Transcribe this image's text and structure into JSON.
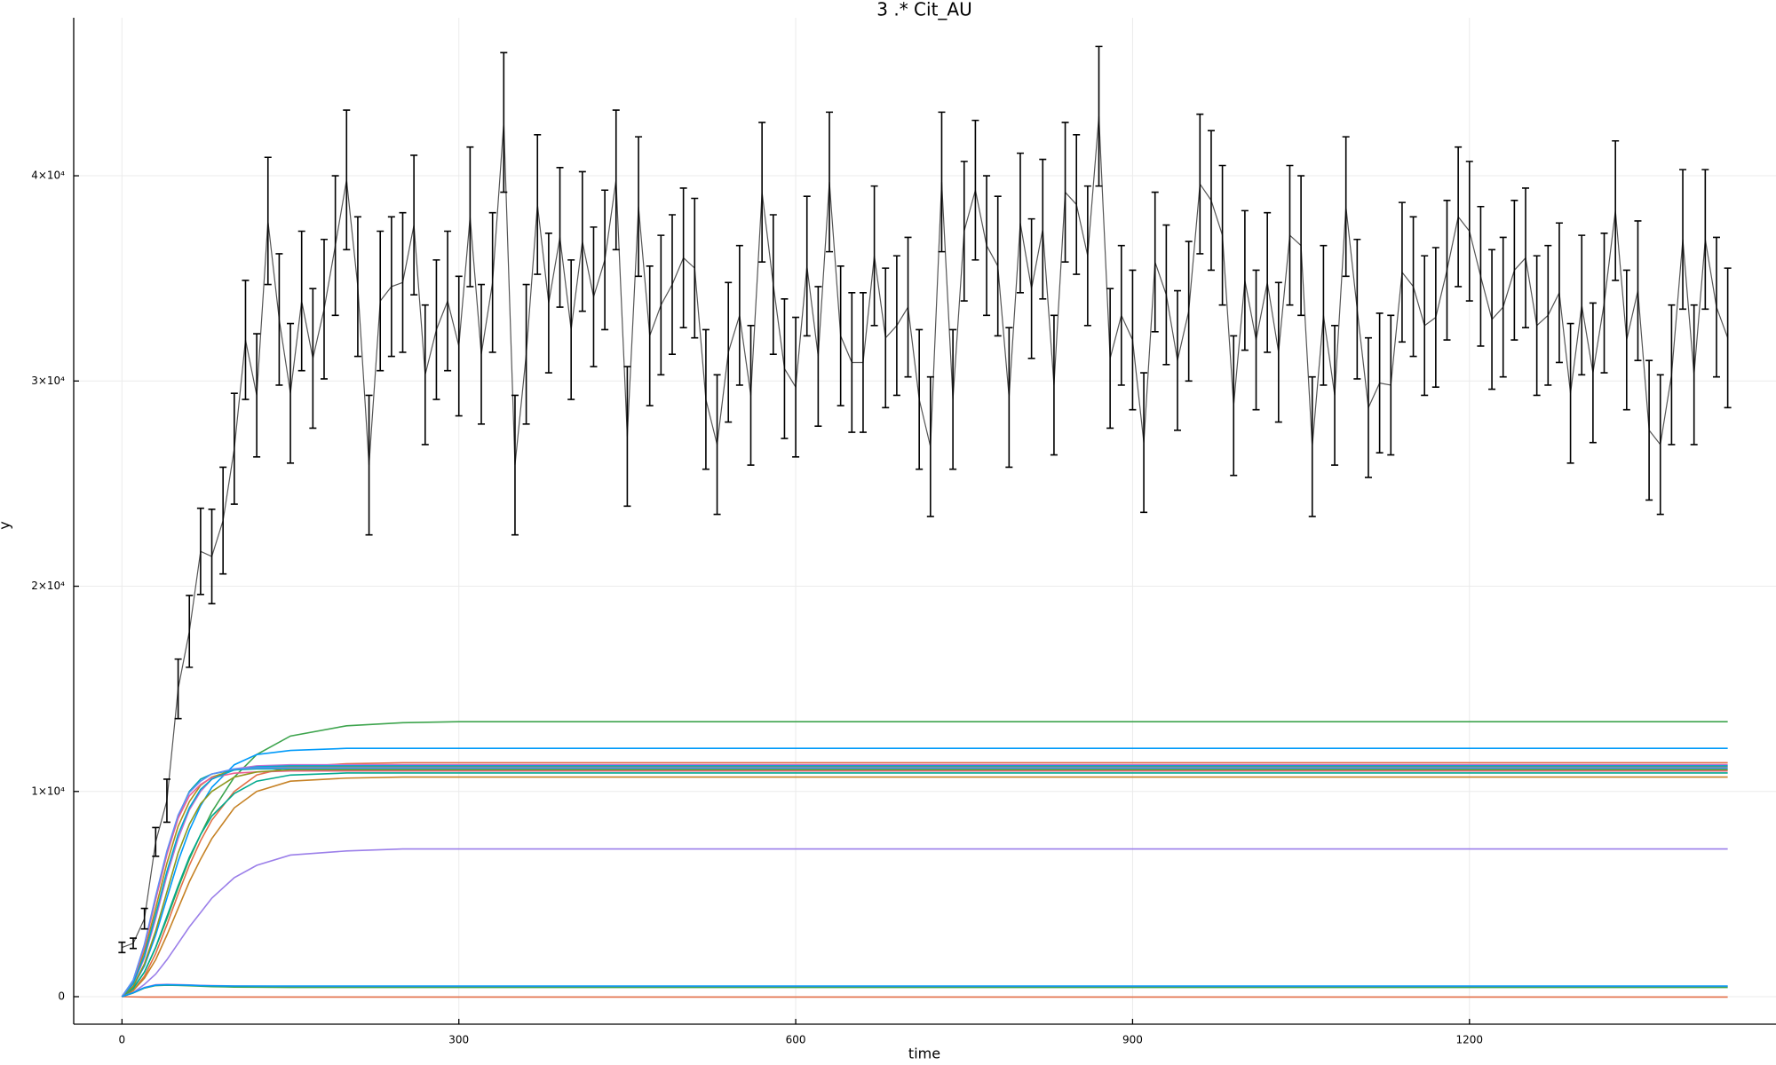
{
  "chart_data": {
    "type": "line",
    "title": "3 .* Cit_AU",
    "x_label": "time",
    "y_label": "y",
    "xlim": [
      -43,
      1473
    ],
    "ylim": [
      -1340,
      47700
    ],
    "xticks": [
      0,
      300,
      600,
      900,
      1200
    ],
    "yticks": [
      0,
      {
        "value": 10000,
        "label": "1×10⁴"
      },
      {
        "value": 20000,
        "label": "2×10⁴"
      },
      {
        "value": 30000,
        "label": "3×10⁴"
      },
      {
        "value": 40000,
        "label": "4×10⁴"
      }
    ],
    "grid": true,
    "x": [
      0,
      10,
      20,
      30,
      40,
      50,
      60,
      70,
      80,
      100,
      120,
      150,
      200,
      250,
      300,
      1430
    ],
    "series": [
      {
        "color": "#555555",
        "error_color": "#000000",
        "x": [
          0,
          10,
          20,
          30,
          40,
          50,
          60,
          70,
          80,
          90,
          100,
          110,
          120,
          130,
          140,
          150,
          160,
          170,
          180,
          190,
          200,
          210,
          220,
          230,
          240,
          250,
          260,
          270,
          280,
          290,
          300,
          310,
          320,
          330,
          340,
          350,
          360,
          370,
          380,
          390,
          400,
          410,
          420,
          430,
          440,
          450,
          460,
          470,
          480,
          490,
          500,
          510,
          520,
          530,
          540,
          550,
          560,
          570,
          580,
          590,
          600,
          610,
          620,
          630,
          640,
          650,
          660,
          670,
          680,
          690,
          700,
          710,
          720,
          730,
          740,
          750,
          760,
          770,
          780,
          790,
          800,
          810,
          820,
          830,
          840,
          850,
          860,
          870,
          880,
          890,
          900,
          910,
          920,
          930,
          940,
          950,
          960,
          970,
          980,
          990,
          1000,
          1010,
          1020,
          1030,
          1040,
          1050,
          1060,
          1070,
          1080,
          1090,
          1100,
          1110,
          1120,
          1130,
          1140,
          1150,
          1160,
          1170,
          1180,
          1190,
          1200,
          1210,
          1220,
          1230,
          1240,
          1250,
          1260,
          1270,
          1280,
          1290,
          1300,
          1310,
          1320,
          1330,
          1340,
          1350,
          1360,
          1370,
          1380,
          1390,
          1400,
          1410,
          1420,
          1430
        ],
        "values": [
          2400,
          2600,
          3800,
          7540,
          9550,
          15000,
          17800,
          21700,
          21450,
          23200,
          26700,
          32000,
          29300,
          37800,
          33000,
          29400,
          33900,
          31100,
          33500,
          36600,
          39800,
          34600,
          25900,
          33900,
          34600,
          34800,
          37600,
          30300,
          32500,
          33900,
          31700,
          38000,
          31300,
          34800,
          42600,
          25900,
          31300,
          38600,
          33800,
          37000,
          32500,
          36800,
          34100,
          35900,
          39800,
          27300,
          38500,
          32200,
          33700,
          34700,
          36000,
          35500,
          29100,
          26900,
          31400,
          33200,
          29300,
          39200,
          34700,
          30600,
          29700,
          35600,
          31200,
          39700,
          32200,
          30900,
          30900,
          36100,
          32100,
          32700,
          33600,
          29100,
          26800,
          39700,
          29100,
          37300,
          39300,
          36600,
          35600,
          29200,
          37700,
          34500,
          37400,
          29800,
          39200,
          38600,
          36100,
          42900,
          31100,
          33200,
          32000,
          27000,
          35800,
          34200,
          31000,
          33400,
          39600,
          38800,
          37100,
          28800,
          34900,
          32000,
          34800,
          31400,
          37100,
          36600,
          26800,
          33200,
          29300,
          38500,
          33500,
          28700,
          29900,
          29800,
          35300,
          34600,
          32700,
          33100,
          35400,
          38000,
          37300,
          35100,
          33000,
          33600,
          35400,
          36000,
          32700,
          33200,
          34300,
          29400,
          33700,
          30400,
          33800,
          38300,
          32000,
          34400,
          27600,
          26900,
          30300,
          36900,
          30300,
          36900,
          33600,
          32100
        ],
        "errors": [
          250,
          250,
          500,
          700,
          1050,
          1450,
          1750,
          2100,
          2300,
          2600,
          2700,
          2900,
          3000,
          3100,
          3200,
          3400,
          3400,
          3400,
          3400,
          3400,
          3400,
          3400,
          3400,
          3400,
          3400,
          3400,
          3400,
          3400,
          3400,
          3400,
          3400,
          3400,
          3400,
          3400,
          3400,
          3400,
          3400,
          3400,
          3400,
          3400,
          3400,
          3400,
          3400,
          3400,
          3400,
          3400,
          3400,
          3400,
          3400,
          3400,
          3400,
          3400,
          3400,
          3400,
          3400,
          3400,
          3400,
          3400,
          3400,
          3400,
          3400,
          3400,
          3400,
          3400,
          3400,
          3400,
          3400,
          3400,
          3400,
          3400,
          3400,
          3400,
          3400,
          3400,
          3400,
          3400,
          3400,
          3400,
          3400,
          3400,
          3400,
          3400,
          3400,
          3400,
          3400,
          3400,
          3400,
          3400,
          3400,
          3400,
          3400,
          3400,
          3400,
          3400,
          3400,
          3400,
          3400,
          3400,
          3400,
          3400,
          3400,
          3400,
          3400,
          3400,
          3400,
          3400,
          3400,
          3400,
          3400,
          3400,
          3400,
          3400,
          3400,
          3400,
          3400,
          3400,
          3400,
          3400,
          3400,
          3400,
          3400,
          3400,
          3400,
          3400,
          3400,
          3400,
          3400,
          3400,
          3400,
          3400,
          3400,
          3400,
          3400,
          3400,
          3400,
          3400,
          3400,
          3400,
          3400,
          3400,
          3400,
          3400,
          3400,
          3400
        ]
      },
      {
        "color": "#3da44d",
        "values": [
          0,
          400,
          1200,
          2400,
          3800,
          5300,
          6700,
          7900,
          9000,
          10700,
          11800,
          12700,
          13200,
          13350,
          13400,
          13400
        ]
      },
      {
        "color": "#009af9",
        "values": [
          0,
          500,
          1500,
          3000,
          4800,
          6600,
          8100,
          9300,
          10200,
          11300,
          11800,
          12000,
          12100,
          12100,
          12100,
          12100
        ]
      },
      {
        "color": "#e26f46",
        "values": [
          0,
          300,
          1000,
          2100,
          3500,
          5000,
          6400,
          7600,
          8600,
          10000,
          10800,
          11200,
          11350,
          11400,
          11400,
          11400
        ]
      },
      {
        "color": "#c271d2",
        "values": [
          0,
          600,
          1900,
          3800,
          5900,
          7700,
          9100,
          10000,
          10600,
          11100,
          11250,
          11300,
          11300,
          11300,
          11300,
          11300
        ]
      },
      {
        "color": "#ac8e18",
        "values": [
          0,
          700,
          2200,
          4300,
          6500,
          8300,
          9500,
          10300,
          10700,
          11050,
          11150,
          11200,
          11200,
          11200,
          11200,
          11200
        ]
      },
      {
        "color": "#00a9ad",
        "values": [
          0,
          800,
          2500,
          4800,
          7000,
          8800,
          10000,
          10600,
          10850,
          11050,
          11100,
          11100,
          11100,
          11100,
          11100,
          11100
        ]
      },
      {
        "color": "#ed5e93",
        "values": [
          0,
          770,
          2420,
          4730,
          6930,
          8690,
          9790,
          10340,
          10670,
          10890,
          10950,
          11000,
          11000,
          11000,
          11000,
          11000
        ]
      },
      {
        "color": "#c68225",
        "values": [
          0,
          300,
          900,
          1800,
          3000,
          4300,
          5600,
          6700,
          7700,
          9200,
          10000,
          10500,
          10650,
          10700,
          10700,
          10700
        ]
      },
      {
        "color": "#00a98d",
        "values": [
          0,
          400,
          1200,
          2400,
          3900,
          5400,
          6800,
          7900,
          8800,
          9900,
          10500,
          10800,
          10900,
          10900,
          10900,
          10900
        ]
      },
      {
        "color": "#8e971d",
        "values": [
          0,
          500,
          1600,
          3200,
          5100,
          7000,
          8400,
          9400,
          10000,
          10700,
          10950,
          11050,
          11050,
          11050,
          11050,
          11050
        ]
      },
      {
        "color": "#00a9cd",
        "values": [
          0,
          650,
          2000,
          4000,
          6100,
          7900,
          9200,
          10100,
          10600,
          11050,
          11200,
          11250,
          11250,
          11250,
          11250,
          11250
        ]
      },
      {
        "color": "#9b7fe9",
        "values": [
          0,
          200,
          600,
          1100,
          1800,
          2600,
          3400,
          4100,
          4800,
          5800,
          6400,
          6900,
          7100,
          7200,
          7200,
          7200
        ]
      },
      {
        "color": "#618df6",
        "values": [
          0,
          800,
          2550,
          4900,
          7100,
          8850,
          9950,
          10500,
          10850,
          11100,
          11150,
          11150,
          11150,
          11150,
          11150,
          11150
        ]
      },
      {
        "color": "#c271d2",
        "values": [
          0,
          200,
          450,
          580,
          600,
          590,
          570,
          550,
          540,
          520,
          510,
          500,
          500,
          500,
          500,
          500
        ]
      },
      {
        "color": "#3da44d",
        "values": [
          0,
          180,
          420,
          540,
          560,
          550,
          530,
          510,
          490,
          470,
          460,
          450,
          450,
          450,
          450,
          450
        ]
      },
      {
        "color": "#e26f46",
        "values": [
          0,
          -10,
          -20,
          -20,
          -20,
          -20,
          -20,
          -20,
          -20,
          -20,
          -20,
          -20,
          -20,
          -20,
          -20,
          -20
        ]
      },
      {
        "color": "#009af9",
        "values": [
          0,
          190,
          440,
          560,
          580,
          570,
          560,
          540,
          530,
          520,
          520,
          520,
          520,
          520,
          520,
          520
        ]
      }
    ]
  }
}
